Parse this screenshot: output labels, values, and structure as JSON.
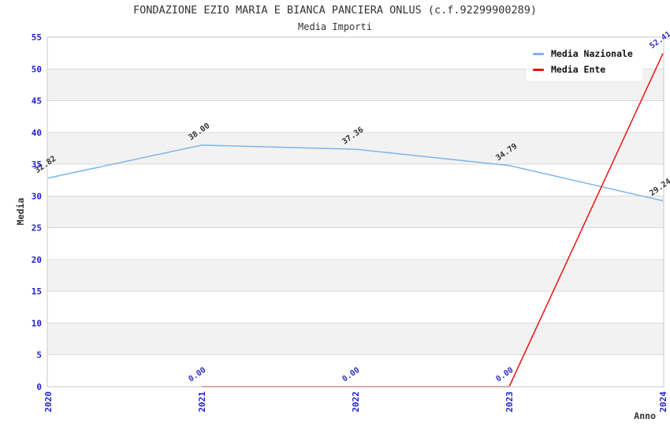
{
  "title": "FONDAZIONE EZIO MARIA E BIANCA PANCIERA ONLUS (c.f.92299900289)",
  "subtitle": "Media Importi",
  "chart_data": {
    "type": "line",
    "categories": [
      "2020",
      "2021",
      "2022",
      "2023",
      "2024"
    ],
    "series": [
      {
        "name": "Media Nazionale",
        "color": "#7cb5ec",
        "values": [
          32.82,
          38.0,
          37.36,
          34.79,
          29.24
        ],
        "labels": [
          "32.82",
          "38.00",
          "37.36",
          "34.79",
          "29.24"
        ],
        "label_color": "#333333"
      },
      {
        "name": "Media Ente",
        "color": "#ee1111",
        "values": [
          null,
          0.0,
          0.0,
          0.0,
          52.41
        ],
        "labels": [
          null,
          "0.00",
          "0.00",
          "0.00",
          "52.41"
        ],
        "label_color": "#3333bb"
      }
    ],
    "xlabel": "Anno",
    "ylabel": "Media",
    "ylim": [
      0,
      55
    ],
    "yticks": [
      0,
      5,
      10,
      15,
      20,
      25,
      30,
      35,
      40,
      45,
      50,
      55
    ],
    "grid": true,
    "legend_position": "top-right",
    "banded_background": true
  },
  "colors": {
    "axis_tick_text": "#2222cc",
    "plot_band": "#f2f2f2",
    "gridline": "#d9d9d9",
    "plot_border": "#c8c8c8",
    "title_text": "#333333"
  }
}
